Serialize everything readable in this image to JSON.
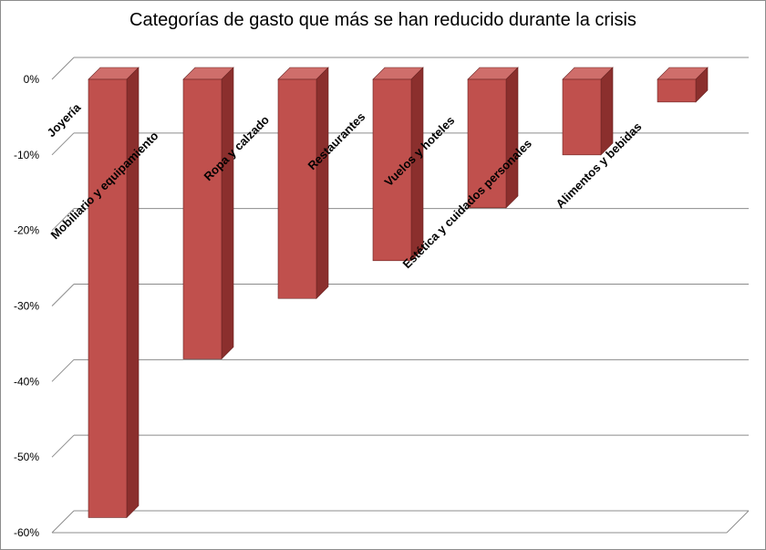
{
  "chart_data": {
    "type": "bar",
    "title": "Categorías de gasto que más se han reducido durante la crisis",
    "categories": [
      "Joyería",
      "Mobiliario y equipamiento",
      "Ropa y calzado",
      "Restaurantes",
      "Vuelos y hoteles",
      "Estética y cuidados personales",
      "Alimentos y bebidas"
    ],
    "values": [
      -58,
      -37,
      -29,
      -24,
      -17,
      -10,
      -3
    ],
    "yticks": [
      "0%",
      "-10%",
      "-20%",
      "-30%",
      "-40%",
      "-50%",
      "-60%"
    ],
    "ylim": [
      -60,
      0
    ],
    "grid": true,
    "style": "3d-column",
    "colors": {
      "bar_front": "#c0504d",
      "bar_side": "#8b2f2d",
      "bar_top": "#cf6e6b",
      "gridline": "#8c8c8c"
    }
  }
}
